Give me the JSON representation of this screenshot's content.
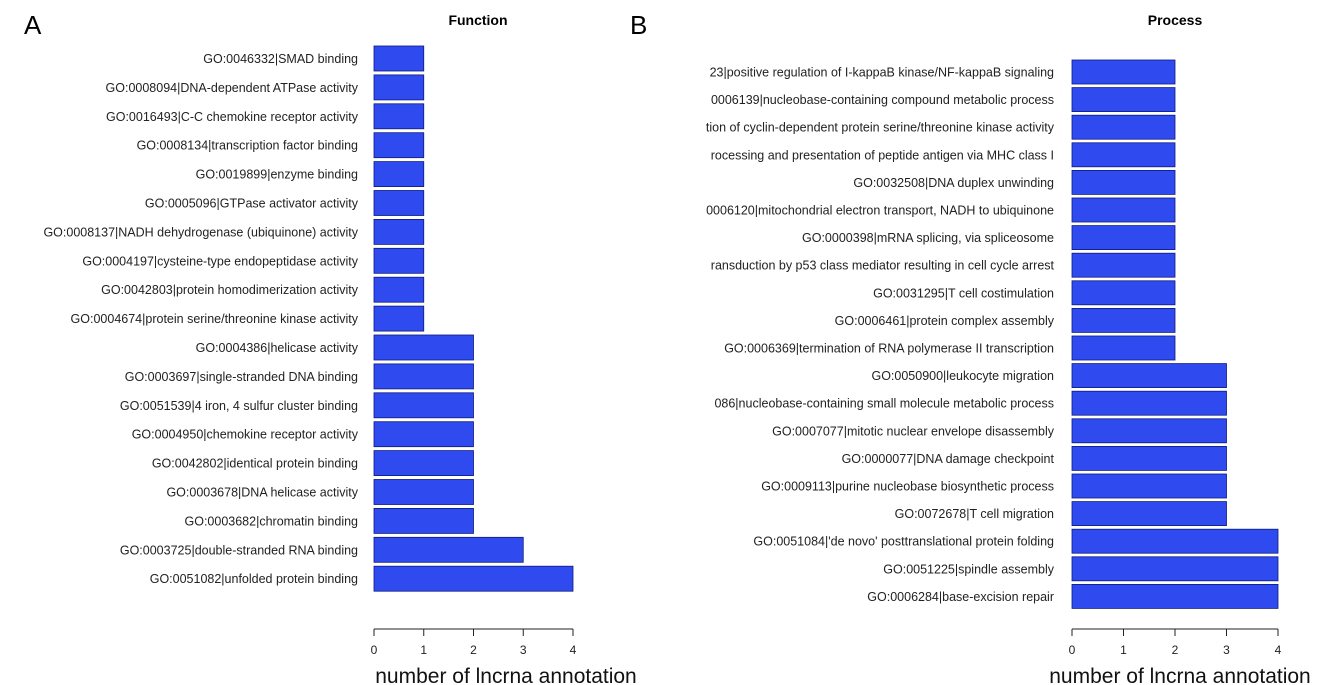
{
  "chart_data": [
    {
      "panel": "A",
      "type": "bar",
      "orientation": "horizontal",
      "title": "Function",
      "xlabel": "number of lncrna annotation",
      "xlim": [
        0,
        4
      ],
      "ticks": [
        "0",
        "1",
        "2",
        "3",
        "4"
      ],
      "bar_color": "#2f4bf0",
      "categories": [
        "GO:0046332|SMAD binding",
        "GO:0008094|DNA-dependent ATPase activity",
        "GO:0016493|C-C chemokine receptor activity",
        "GO:0008134|transcription factor binding",
        "GO:0019899|enzyme binding",
        "GO:0005096|GTPase activator activity",
        "GO:0008137|NADH dehydrogenase (ubiquinone) activity",
        "GO:0004197|cysteine-type endopeptidase activity",
        "GO:0042803|protein homodimerization activity",
        "GO:0004674|protein serine/threonine kinase activity",
        "GO:0004386|helicase activity",
        "GO:0003697|single-stranded DNA binding",
        "GO:0051539|4 iron, 4 sulfur cluster binding",
        "GO:0004950|chemokine receptor activity",
        "GO:0042802|identical protein binding",
        "GO:0003678|DNA helicase activity",
        "GO:0003682|chromatin binding",
        "GO:0003725|double-stranded RNA binding",
        "GO:0051082|unfolded protein binding"
      ],
      "values": [
        1,
        1,
        1,
        1,
        1,
        1,
        1,
        1,
        1,
        1,
        2,
        2,
        2,
        2,
        2,
        2,
        2,
        3,
        4
      ]
    },
    {
      "panel": "B",
      "type": "bar",
      "orientation": "horizontal",
      "title": "Process",
      "xlabel": "number of lncrna annotation",
      "xlim": [
        0,
        4
      ],
      "ticks": [
        "0",
        "1",
        "2",
        "3",
        "4"
      ],
      "bar_color": "#2f4bf0",
      "categories": [
        "23|positive regulation of I-kappaB kinase/NF-kappaB signaling",
        "0006139|nucleobase-containing compound metabolic process",
        "tion of cyclin-dependent protein serine/threonine kinase activity",
        "rocessing and presentation of peptide antigen via MHC class I",
        "GO:0032508|DNA duplex unwinding",
        "0006120|mitochondrial electron transport, NADH to ubiquinone",
        "GO:0000398|mRNA splicing, via spliceosome",
        "ransduction by p53 class mediator resulting in cell cycle arrest",
        "GO:0031295|T cell costimulation",
        "GO:0006461|protein complex assembly",
        "GO:0006369|termination of RNA polymerase II transcription",
        "GO:0050900|leukocyte migration",
        "086|nucleobase-containing small molecule metabolic process",
        "GO:0007077|mitotic nuclear envelope disassembly",
        "GO:0000077|DNA damage checkpoint",
        "GO:0009113|purine nucleobase biosynthetic process",
        "GO:0072678|T cell migration",
        "GO:0051084|'de novo' posttranslational protein folding",
        "GO:0051225|spindle assembly",
        "GO:0006284|base-excision repair"
      ],
      "values": [
        2,
        2,
        2,
        2,
        2,
        2,
        2,
        2,
        2,
        2,
        2,
        3,
        3,
        3,
        3,
        3,
        3,
        4,
        4,
        4
      ]
    }
  ]
}
